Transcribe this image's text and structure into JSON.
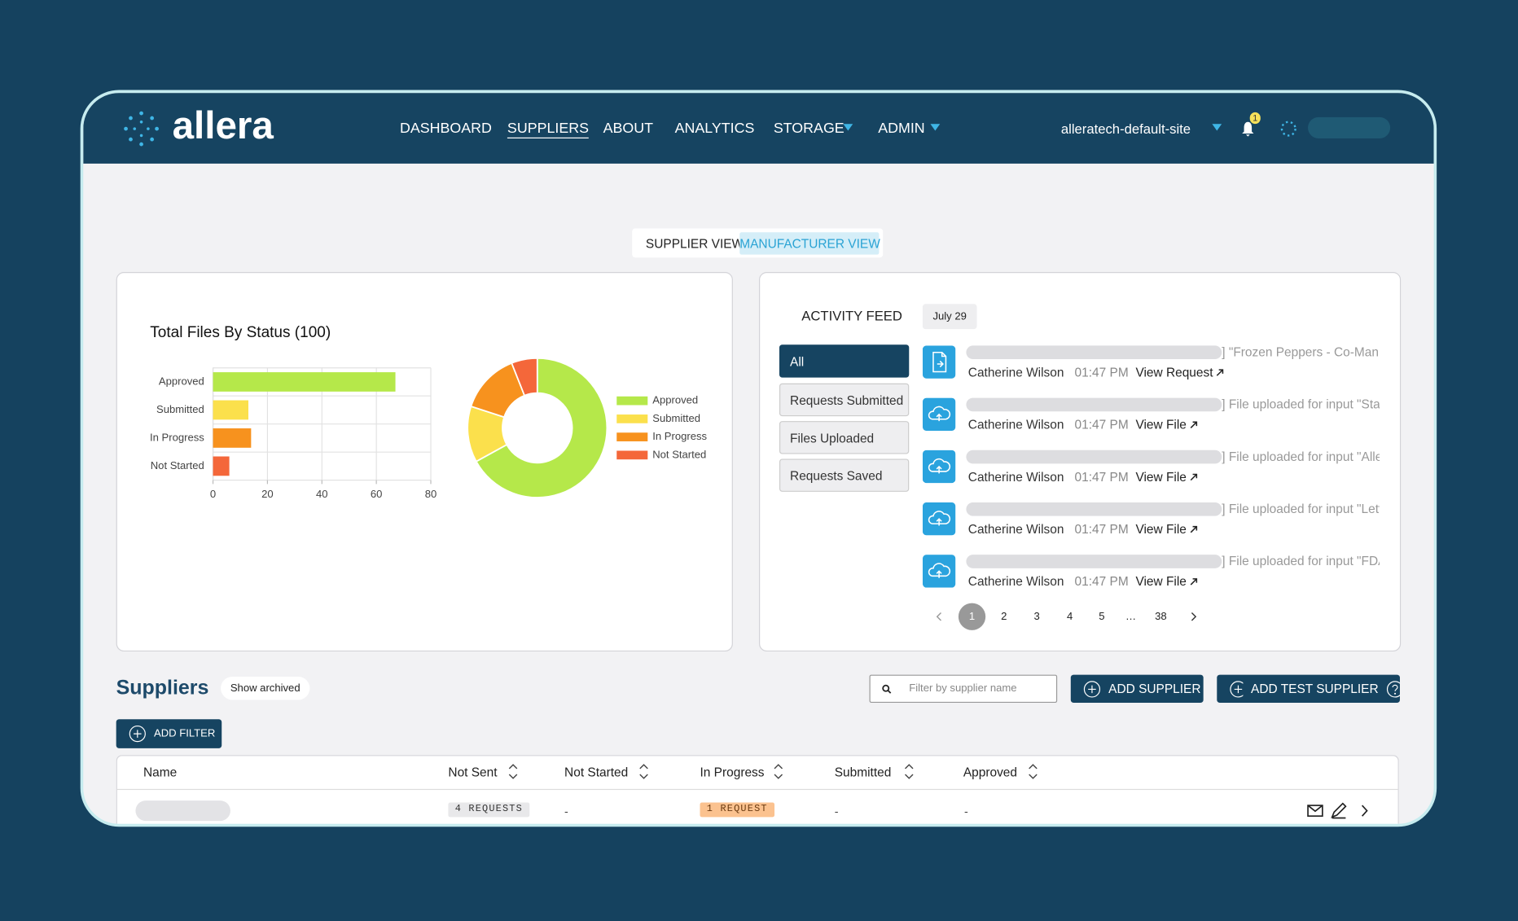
{
  "nav": {
    "logo": "allera",
    "items": [
      "DASHBOARD",
      "SUPPLIERS",
      "ABOUT",
      "ANALYTICS",
      "STORAGE",
      "ADMIN"
    ],
    "site": "alleratech-default-site",
    "notification_count": 1
  },
  "view_toggle": [
    "SUPPLIER VIEW",
    "MANUFACTURER VIEW"
  ],
  "chart_data": [
    {
      "type": "bar",
      "orientation": "horizontal",
      "title": "Total Files By Status (100)",
      "categories": [
        "Approved",
        "Submitted",
        "In Progress",
        "Not Started"
      ],
      "values": [
        67,
        13,
        14,
        6
      ],
      "colors": [
        "#b5e84a",
        "#fbe04c",
        "#f7921e",
        "#f4673a"
      ],
      "xlim": [
        0,
        80
      ],
      "xticks": [
        0,
        20,
        40,
        60,
        80
      ],
      "grid": true
    },
    {
      "type": "pie",
      "donut": true,
      "legend": "right",
      "categories": [
        "Approved",
        "Submitted",
        "In Progress",
        "Not Started"
      ],
      "values": [
        67,
        13,
        14,
        6
      ],
      "colors": [
        "#b5e84a",
        "#fbe04c",
        "#f7921e",
        "#f4673a"
      ]
    }
  ],
  "activity_feed": {
    "title": "ACTIVITY FEED",
    "date": "July 29",
    "filters": [
      "All",
      "Requests Submitted",
      "Files Uploaded",
      "Requests Saved"
    ],
    "items": [
      {
        "description": "] \"Frozen Peppers - Co-Man O",
        "user": "Catherine Wilson",
        "time": "01:47 PM",
        "link": "View Request"
      },
      {
        "description": "] File uploaded for input \"Stat",
        "user": "Catherine Wilson",
        "time": "01:47 PM",
        "link": "View File"
      },
      {
        "description": "] File uploaded for input \"Alle",
        "user": "Catherine Wilson",
        "time": "01:47 PM",
        "link": "View File"
      },
      {
        "description": "] File uploaded for input \"Lett",
        "user": "Catherine Wilson",
        "time": "01:47 PM",
        "link": "View File"
      },
      {
        "description": "] File uploaded for input \"FDA",
        "user": "Catherine Wilson",
        "time": "01:47 PM",
        "link": "View File"
      }
    ],
    "pagination": [
      "1",
      "2",
      "3",
      "4",
      "5",
      "…",
      "38"
    ]
  },
  "suppliers": {
    "title": "Suppliers",
    "show_archived": "Show archived",
    "search_placeholder": "Filter by supplier name",
    "buttons": [
      "ADD SUPPLIER",
      "ADD TEST SUPPLIER"
    ],
    "add_filter": "ADD FILTER",
    "table": {
      "columns": [
        "Name",
        "Not Sent",
        "Not Started",
        "In Progress",
        "Submitted",
        "Approved"
      ],
      "rows": [
        {
          "not_sent": "4 REQUESTS",
          "not_started": "-",
          "in_progress": "1 REQUEST",
          "submitted": "-",
          "approved": "-"
        }
      ]
    }
  }
}
